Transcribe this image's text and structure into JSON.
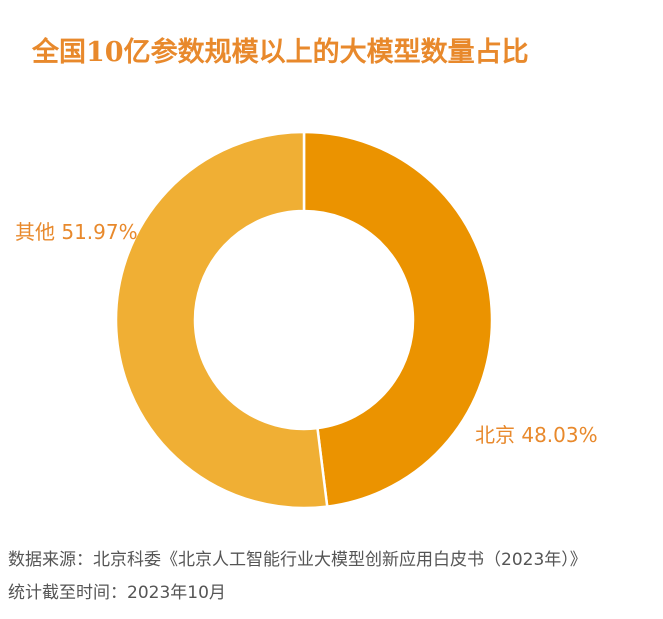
{
  "title": "全国10亿参数规模以上的大模型数量占比",
  "chart_data": {
    "type": "pie",
    "variant": "donut",
    "slices": [
      {
        "label": "北京",
        "value": 48.03,
        "value_label": "48.03%",
        "color": "#EB9300"
      },
      {
        "label": "其他",
        "value": 51.97,
        "value_label": "51.97%",
        "color": "#F0AF34"
      }
    ]
  },
  "footer": {
    "source": "数据来源：北京科委《北京人工智能行业大模型创新应用白皮书（2023年）》",
    "stat_time": "统计截至时间：2023年10月"
  }
}
